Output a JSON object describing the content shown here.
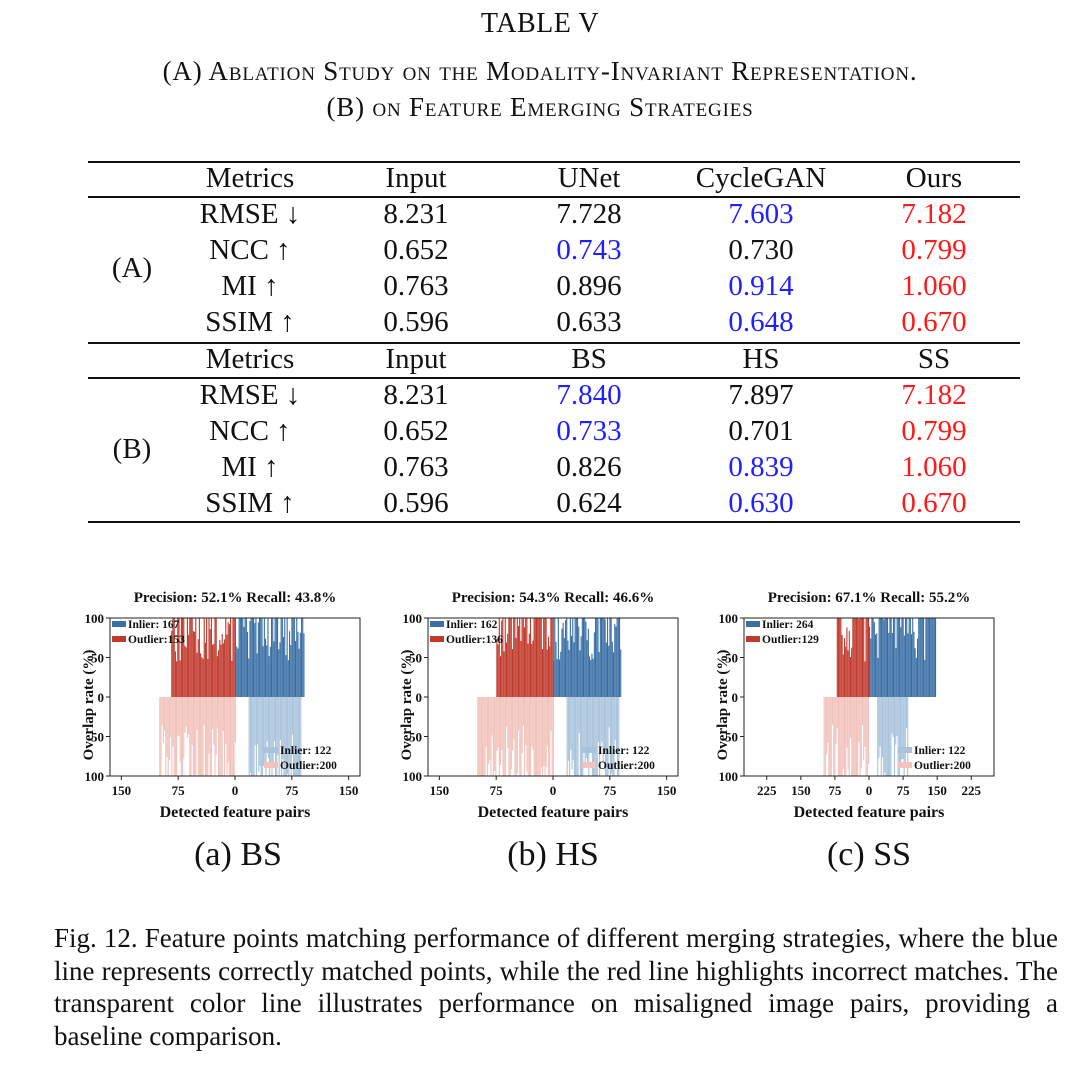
{
  "table": {
    "title": "TABLE V",
    "caption_line1": "(A) Ablation Study on the Modality-Invariant Representation.",
    "caption_line2": "(B) on Feature Emerging Strategies",
    "sections": [
      {
        "label": "(A)",
        "headers": [
          "Metrics",
          "Input",
          "UNet",
          "CycleGAN",
          "Ours"
        ],
        "rows": [
          {
            "metric": "RMSE ↓",
            "values": [
              "8.231",
              "7.728",
              "7.603",
              "7.182"
            ],
            "colors": [
              "black",
              "black",
              "blue",
              "red"
            ]
          },
          {
            "metric": "NCC ↑",
            "values": [
              "0.652",
              "0.743",
              "0.730",
              "0.799"
            ],
            "colors": [
              "black",
              "blue",
              "black",
              "red"
            ]
          },
          {
            "metric": "MI ↑",
            "values": [
              "0.763",
              "0.896",
              "0.914",
              "1.060"
            ],
            "colors": [
              "black",
              "black",
              "blue",
              "red"
            ]
          },
          {
            "metric": "SSIM ↑",
            "values": [
              "0.596",
              "0.633",
              "0.648",
              "0.670"
            ],
            "colors": [
              "black",
              "black",
              "blue",
              "red"
            ]
          }
        ]
      },
      {
        "label": "(B)",
        "headers": [
          "Metrics",
          "Input",
          "BS",
          "HS",
          "SS"
        ],
        "rows": [
          {
            "metric": "RMSE ↓",
            "values": [
              "8.231",
              "7.840",
              "7.897",
              "7.182"
            ],
            "colors": [
              "black",
              "blue",
              "black",
              "red"
            ]
          },
          {
            "metric": "NCC ↑",
            "values": [
              "0.652",
              "0.733",
              "0.701",
              "0.799"
            ],
            "colors": [
              "black",
              "blue",
              "black",
              "red"
            ]
          },
          {
            "metric": "MI ↑",
            "values": [
              "0.763",
              "0.826",
              "0.839",
              "1.060"
            ],
            "colors": [
              "black",
              "black",
              "blue",
              "red"
            ]
          },
          {
            "metric": "SSIM ↑",
            "values": [
              "0.596",
              "0.624",
              "0.630",
              "0.670"
            ],
            "colors": [
              "black",
              "black",
              "blue",
              "red"
            ]
          }
        ]
      }
    ],
    "colors": {
      "blue": "#1f1fff",
      "red": "#ff1a1a",
      "black": "#111111"
    }
  },
  "chart_data": [
    {
      "type": "bar",
      "subcaption": "(a) BS",
      "title": "Precision: 52.1%   Recall: 43.8%",
      "xlabel": "Detected feature pairs",
      "ylabel": "Overlap rate (%)",
      "xticks": [
        "150",
        "75",
        "0",
        "75",
        "150"
      ],
      "xlim": [
        -165,
        165
      ],
      "yticks": [
        "100",
        "50",
        "0",
        "50",
        "100"
      ],
      "ylim": [
        -100,
        100
      ],
      "series": [
        {
          "name": "Inlier",
          "count": 167,
          "legend": "Inlier: 167",
          "side": "right",
          "direction": "up",
          "color": "#3a6fa3"
        },
        {
          "name": "Outlier",
          "count": 153,
          "legend": "Outlier:153",
          "side": "left",
          "direction": "up",
          "color": "#c0392b"
        },
        {
          "name": "Inlier (misaligned)",
          "count": 122,
          "legend": "Inlier: 122",
          "side": "right",
          "direction": "down",
          "color": "#a9c3dc"
        },
        {
          "name": "Outlier (misaligned)",
          "count": 200,
          "legend": "Outlier:200",
          "side": "left",
          "direction": "down",
          "color": "#f2c2bc"
        }
      ]
    },
    {
      "type": "bar",
      "subcaption": "(b) HS",
      "title": "Precision: 54.3%   Recall: 46.6%",
      "xlabel": "Detected feature pairs",
      "ylabel": "Overlap rate (%)",
      "xticks": [
        "150",
        "75",
        "0",
        "75",
        "150"
      ],
      "xlim": [
        -165,
        165
      ],
      "yticks": [
        "100",
        "50",
        "0",
        "50",
        "100"
      ],
      "ylim": [
        -100,
        100
      ],
      "series": [
        {
          "name": "Inlier",
          "count": 162,
          "legend": "Inlier: 162",
          "side": "right",
          "direction": "up",
          "color": "#3a6fa3"
        },
        {
          "name": "Outlier",
          "count": 136,
          "legend": "Outlier:136",
          "side": "left",
          "direction": "up",
          "color": "#c0392b"
        },
        {
          "name": "Inlier (misaligned)",
          "count": 122,
          "legend": "Inlier: 122",
          "side": "right",
          "direction": "down",
          "color": "#a9c3dc"
        },
        {
          "name": "Outlier (misaligned)",
          "count": 200,
          "legend": "Outlier:200",
          "side": "left",
          "direction": "down",
          "color": "#f2c2bc"
        }
      ]
    },
    {
      "type": "bar",
      "subcaption": "(c) SS",
      "title": "Precision: 67.1%   Recall: 55.2%",
      "xlabel": "Detected feature pairs",
      "ylabel": "Overlap rate (%)",
      "xticks": [
        "225",
        "150",
        "75",
        "0",
        "75",
        "150",
        "225"
      ],
      "xlim": [
        -275,
        275
      ],
      "yticks": [
        "100",
        "50",
        "0",
        "50",
        "100"
      ],
      "ylim": [
        -100,
        100
      ],
      "series": [
        {
          "name": "Inlier",
          "count": 264,
          "legend": "Inlier: 264",
          "side": "right",
          "direction": "up",
          "color": "#3a6fa3"
        },
        {
          "name": "Outlier",
          "count": 129,
          "legend": "Outlier:129",
          "side": "left",
          "direction": "up",
          "color": "#c0392b"
        },
        {
          "name": "Inlier (misaligned)",
          "count": 122,
          "legend": "Inlier: 122",
          "side": "right",
          "direction": "down",
          "color": "#a9c3dc"
        },
        {
          "name": "Outlier (misaligned)",
          "count": 200,
          "legend": "Outlier:200",
          "side": "left",
          "direction": "down",
          "color": "#f2c2bc"
        }
      ]
    }
  ],
  "figure_caption": "Fig. 12.  Feature points matching performance of different merging strategies, where the blue line represents correctly matched points, while the red line highlights incorrect matches. The transparent color line illustrates performance on misaligned image pairs, providing a baseline comparison."
}
